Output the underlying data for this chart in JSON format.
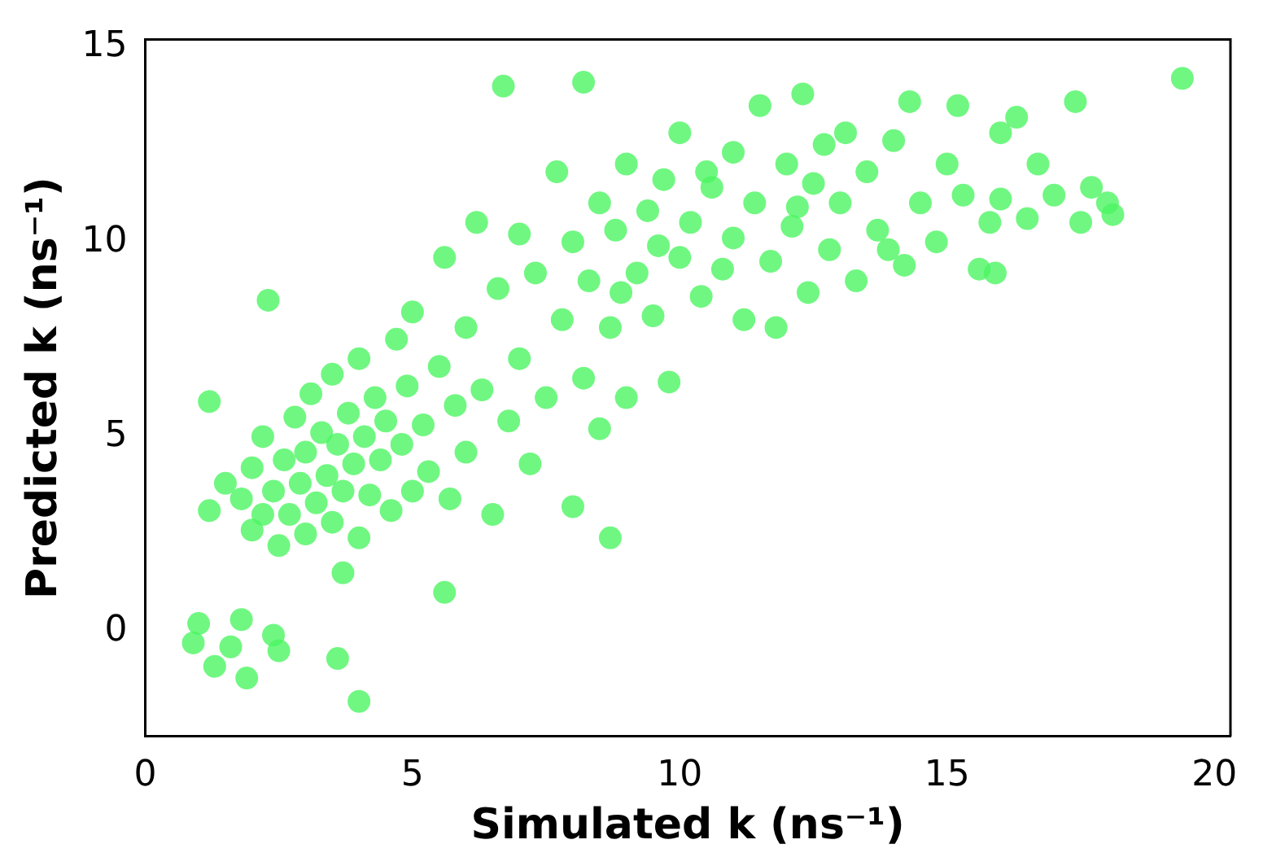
{
  "chart_data": {
    "type": "scatter",
    "xlabel": "Simulated k (ns⁻¹)",
    "ylabel": "Predicted k (ns⁻¹)",
    "xlim": [
      0,
      20.3
    ],
    "ylim": [
      -2.7,
      15.2
    ],
    "xticks": [
      0,
      5,
      10,
      15,
      20
    ],
    "yticks": [
      0,
      5,
      10,
      15
    ],
    "grid": false,
    "legend": false,
    "marker": "circle",
    "series": [
      {
        "color": "#4cf562",
        "x": [
          1.0,
          0.9,
          1.3,
          1.6,
          1.8,
          1.9,
          2.4,
          2.5,
          3.6,
          4.0,
          1.2,
          1.2,
          3.7,
          5.6,
          8.7,
          6.7,
          8.2,
          19.4,
          2.3,
          1.5,
          1.8,
          2.0,
          2.0,
          2.2,
          2.2,
          2.4,
          2.5,
          2.6,
          2.7,
          2.8,
          2.9,
          3.0,
          3.0,
          3.1,
          3.2,
          3.3,
          3.4,
          3.5,
          3.5,
          3.6,
          3.7,
          3.8,
          3.9,
          4.0,
          4.0,
          4.1,
          4.2,
          4.3,
          4.4,
          4.5,
          4.6,
          4.7,
          4.8,
          4.9,
          5.0,
          5.0,
          5.2,
          5.3,
          5.5,
          5.6,
          5.7,
          5.8,
          6.0,
          6.0,
          6.2,
          6.3,
          6.5,
          6.6,
          6.8,
          7.0,
          7.0,
          7.2,
          7.3,
          7.5,
          7.7,
          7.8,
          8.0,
          8.0,
          8.2,
          8.3,
          8.5,
          8.5,
          8.7,
          8.8,
          9.0,
          9.0,
          9.2,
          9.4,
          9.5,
          9.7,
          9.8,
          10.0,
          10.0,
          10.2,
          10.4,
          10.6,
          10.8,
          11.0,
          11.0,
          11.2,
          11.4,
          11.5,
          11.7,
          11.8,
          12.0,
          12.1,
          12.3,
          12.4,
          12.5,
          12.7,
          12.8,
          13.0,
          13.1,
          13.3,
          13.5,
          13.7,
          14.0,
          14.2,
          14.3,
          14.5,
          14.8,
          15.0,
          15.2,
          15.3,
          15.6,
          15.8,
          16.0,
          16.0,
          16.3,
          16.5,
          16.7,
          17.0,
          17.4,
          17.5,
          17.7,
          18.0,
          18.1,
          15.9,
          13.9,
          12.2,
          10.5,
          9.6,
          8.9
        ],
        "values": [
          0.2,
          -0.3,
          -0.9,
          -0.4,
          0.3,
          -1.2,
          -0.1,
          -0.5,
          -0.7,
          -1.8,
          3.1,
          5.9,
          1.5,
          1.0,
          2.4,
          14.0,
          14.1,
          14.2,
          8.5,
          3.8,
          3.4,
          2.6,
          4.2,
          3.0,
          5.0,
          3.6,
          2.2,
          4.4,
          3.0,
          5.5,
          3.8,
          2.5,
          4.6,
          6.1,
          3.3,
          5.1,
          4.0,
          2.8,
          6.6,
          4.8,
          3.6,
          5.6,
          4.3,
          2.4,
          7.0,
          5.0,
          3.5,
          6.0,
          4.4,
          5.4,
          3.1,
          7.5,
          4.8,
          6.3,
          3.6,
          8.2,
          5.3,
          4.1,
          6.8,
          9.6,
          3.4,
          5.8,
          4.6,
          7.8,
          10.5,
          6.2,
          3.0,
          8.8,
          5.4,
          7.0,
          10.2,
          4.3,
          9.2,
          6.0,
          11.8,
          8.0,
          3.2,
          10.0,
          6.5,
          9.0,
          11.0,
          5.2,
          7.8,
          10.3,
          6.0,
          12.0,
          9.2,
          10.8,
          8.1,
          11.6,
          6.4,
          9.6,
          12.8,
          10.5,
          8.6,
          11.4,
          9.3,
          12.3,
          10.1,
          8.0,
          11.0,
          13.5,
          9.5,
          7.8,
          12.0,
          10.4,
          13.8,
          8.7,
          11.5,
          12.5,
          9.8,
          11.0,
          12.8,
          9.0,
          11.8,
          10.3,
          12.6,
          9.4,
          13.6,
          11.0,
          10.0,
          12.0,
          13.5,
          11.2,
          9.3,
          10.5,
          12.8,
          11.1,
          13.2,
          10.6,
          12.0,
          11.2,
          13.6,
          10.5,
          11.4,
          11.0,
          10.7,
          9.2,
          9.8,
          10.9,
          11.8,
          9.9,
          8.7
        ]
      }
    ]
  }
}
